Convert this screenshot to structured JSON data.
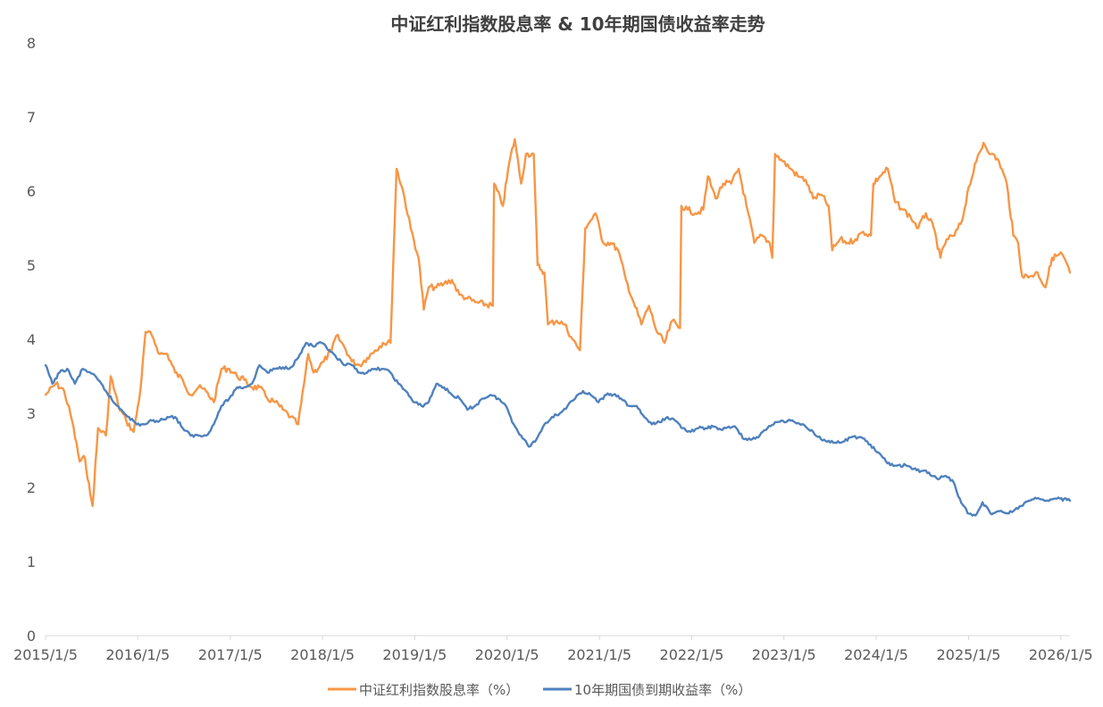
{
  "chart_data": {
    "type": "line",
    "title": "中证红利指数股息率 & 10年期国债收益率走势",
    "xlabel": "",
    "ylabel": "",
    "ylim": [
      0,
      8
    ],
    "y_ticks": [
      "0",
      "1",
      "2",
      "3",
      "4",
      "5",
      "6",
      "7",
      "8"
    ],
    "x_range": [
      "2015-01-05",
      "2026-02-10"
    ],
    "x_ticks": [
      "2015/1/5",
      "2016/1/5",
      "2017/1/5",
      "2018/1/5",
      "2019/1/5",
      "2020/1/5",
      "2021/1/5",
      "2022/1/5",
      "2023/1/5",
      "2024/1/5",
      "2025/1/5",
      "2026/1/5"
    ],
    "grid": false,
    "legend_position": "bottom",
    "series": [
      {
        "name": "中证红利指数股息率（%）",
        "color": "#F79646",
        "points": [
          [
            "2015-01-05",
            3.25
          ],
          [
            "2015-02-15",
            3.4
          ],
          [
            "2015-03-20",
            3.3
          ],
          [
            "2015-04-20",
            2.9
          ],
          [
            "2015-05-20",
            2.35
          ],
          [
            "2015-06-10",
            2.4
          ],
          [
            "2015-07-01",
            1.9
          ],
          [
            "2015-07-10",
            1.75
          ],
          [
            "2015-08-01",
            2.8
          ],
          [
            "2015-09-01",
            2.7
          ],
          [
            "2015-09-20",
            3.5
          ],
          [
            "2015-10-20",
            3.1
          ],
          [
            "2015-11-20",
            2.9
          ],
          [
            "2015-12-20",
            2.75
          ],
          [
            "2016-01-15",
            3.3
          ],
          [
            "2016-02-05",
            4.1
          ],
          [
            "2016-03-01",
            4.05
          ],
          [
            "2016-04-01",
            3.8
          ],
          [
            "2016-05-01",
            3.8
          ],
          [
            "2016-06-01",
            3.55
          ],
          [
            "2016-07-01",
            3.45
          ],
          [
            "2016-08-01",
            3.25
          ],
          [
            "2016-09-01",
            3.35
          ],
          [
            "2016-10-01",
            3.3
          ],
          [
            "2016-11-01",
            3.15
          ],
          [
            "2016-12-01",
            3.6
          ],
          [
            "2017-01-01",
            3.6
          ],
          [
            "2017-02-01",
            3.5
          ],
          [
            "2017-03-01",
            3.45
          ],
          [
            "2017-04-01",
            3.35
          ],
          [
            "2017-05-01",
            3.35
          ],
          [
            "2017-06-01",
            3.2
          ],
          [
            "2017-07-01",
            3.15
          ],
          [
            "2017-08-01",
            3.05
          ],
          [
            "2017-09-01",
            2.95
          ],
          [
            "2017-10-01",
            2.85
          ],
          [
            "2017-11-10",
            3.8
          ],
          [
            "2017-12-01",
            3.55
          ],
          [
            "2018-01-10",
            3.7
          ],
          [
            "2018-02-10",
            3.85
          ],
          [
            "2018-03-01",
            4.05
          ],
          [
            "2018-04-01",
            3.9
          ],
          [
            "2018-05-01",
            3.7
          ],
          [
            "2018-06-01",
            3.65
          ],
          [
            "2018-07-01",
            3.75
          ],
          [
            "2018-08-01",
            3.85
          ],
          [
            "2018-09-01",
            3.95
          ],
          [
            "2018-10-01",
            3.95
          ],
          [
            "2018-10-25",
            6.3
          ],
          [
            "2018-11-20",
            6.0
          ],
          [
            "2018-12-20",
            5.5
          ],
          [
            "2019-01-20",
            5.1
          ],
          [
            "2019-02-10",
            4.4
          ],
          [
            "2019-03-01",
            4.7
          ],
          [
            "2019-04-01",
            4.7
          ],
          [
            "2019-05-01",
            4.75
          ],
          [
            "2019-06-01",
            4.8
          ],
          [
            "2019-07-01",
            4.6
          ],
          [
            "2019-08-01",
            4.55
          ],
          [
            "2019-09-01",
            4.5
          ],
          [
            "2019-11-10",
            4.45
          ],
          [
            "2019-11-15",
            6.1
          ],
          [
            "2019-12-20",
            5.8
          ],
          [
            "2020-01-15",
            6.4
          ],
          [
            "2020-02-05",
            6.7
          ],
          [
            "2020-03-01",
            6.1
          ],
          [
            "2020-03-20",
            6.5
          ],
          [
            "2020-04-20",
            6.5
          ],
          [
            "2020-05-05",
            5.0
          ],
          [
            "2020-06-01",
            4.9
          ],
          [
            "2020-06-15",
            4.2
          ],
          [
            "2020-07-20",
            4.25
          ],
          [
            "2020-08-20",
            4.2
          ],
          [
            "2020-09-20",
            4.0
          ],
          [
            "2020-10-20",
            3.85
          ],
          [
            "2020-11-10",
            5.5
          ],
          [
            "2020-12-01",
            5.6
          ],
          [
            "2020-12-20",
            5.7
          ],
          [
            "2021-01-20",
            5.3
          ],
          [
            "2021-02-20",
            5.3
          ],
          [
            "2021-03-20",
            5.2
          ],
          [
            "2021-04-20",
            4.8
          ],
          [
            "2021-05-20",
            4.5
          ],
          [
            "2021-06-20",
            4.2
          ],
          [
            "2021-07-20",
            4.45
          ],
          [
            "2021-08-20",
            4.1
          ],
          [
            "2021-09-20",
            3.95
          ],
          [
            "2021-10-20",
            4.25
          ],
          [
            "2021-11-20",
            4.15
          ],
          [
            "2021-11-25",
            5.8
          ],
          [
            "2021-12-20",
            5.75
          ],
          [
            "2022-01-20",
            5.7
          ],
          [
            "2022-02-20",
            5.75
          ],
          [
            "2022-03-10",
            6.2
          ],
          [
            "2022-04-10",
            5.9
          ],
          [
            "2022-05-10",
            6.1
          ],
          [
            "2022-06-10",
            6.1
          ],
          [
            "2022-07-10",
            6.3
          ],
          [
            "2022-08-10",
            5.8
          ],
          [
            "2022-09-10",
            5.3
          ],
          [
            "2022-10-10",
            5.4
          ],
          [
            "2022-11-10",
            5.3
          ],
          [
            "2022-11-20",
            5.1
          ],
          [
            "2022-12-01",
            6.5
          ],
          [
            "2023-01-01",
            6.4
          ],
          [
            "2023-02-01",
            6.3
          ],
          [
            "2023-03-01",
            6.2
          ],
          [
            "2023-04-01",
            6.15
          ],
          [
            "2023-05-01",
            5.9
          ],
          [
            "2023-06-01",
            5.95
          ],
          [
            "2023-07-01",
            5.8
          ],
          [
            "2023-07-15",
            5.2
          ],
          [
            "2023-08-15",
            5.35
          ],
          [
            "2023-09-15",
            5.3
          ],
          [
            "2023-10-15",
            5.35
          ],
          [
            "2023-11-15",
            5.45
          ],
          [
            "2023-12-15",
            5.4
          ],
          [
            "2023-12-25",
            6.1
          ],
          [
            "2024-01-20",
            6.2
          ],
          [
            "2024-02-20",
            6.3
          ],
          [
            "2024-03-20",
            5.85
          ],
          [
            "2024-04-20",
            5.75
          ],
          [
            "2024-05-20",
            5.65
          ],
          [
            "2024-06-20",
            5.5
          ],
          [
            "2024-07-20",
            5.7
          ],
          [
            "2024-08-20",
            5.5
          ],
          [
            "2024-09-15",
            5.1
          ],
          [
            "2024-10-10",
            5.35
          ],
          [
            "2024-11-10",
            5.4
          ],
          [
            "2024-12-10",
            5.6
          ],
          [
            "2025-01-05",
            6.05
          ],
          [
            "2025-02-05",
            6.4
          ],
          [
            "2025-03-05",
            6.65
          ],
          [
            "2025-04-05",
            6.5
          ],
          [
            "2025-05-05",
            6.4
          ],
          [
            "2025-06-05",
            6.1
          ],
          [
            "2025-07-01",
            5.4
          ],
          [
            "2025-07-20",
            5.3
          ],
          [
            "2025-08-05",
            4.85
          ],
          [
            "2025-09-05",
            4.85
          ],
          [
            "2025-10-05",
            4.9
          ],
          [
            "2025-11-05",
            4.7
          ],
          [
            "2025-12-01",
            5.1
          ],
          [
            "2026-01-10",
            5.15
          ],
          [
            "2026-02-10",
            4.9
          ]
        ]
      },
      {
        "name": "10年期国债到期收益率（%）",
        "color": "#4F81BD",
        "points": [
          [
            "2015-01-05",
            3.65
          ],
          [
            "2015-02-01",
            3.4
          ],
          [
            "2015-03-01",
            3.55
          ],
          [
            "2015-04-01",
            3.6
          ],
          [
            "2015-05-01",
            3.4
          ],
          [
            "2015-06-01",
            3.6
          ],
          [
            "2015-07-01",
            3.55
          ],
          [
            "2015-08-01",
            3.45
          ],
          [
            "2015-09-01",
            3.3
          ],
          [
            "2015-10-01",
            3.15
          ],
          [
            "2015-11-01",
            3.05
          ],
          [
            "2015-12-01",
            2.95
          ],
          [
            "2016-01-01",
            2.85
          ],
          [
            "2016-02-01",
            2.85
          ],
          [
            "2016-03-01",
            2.9
          ],
          [
            "2016-04-01",
            2.9
          ],
          [
            "2016-05-01",
            2.95
          ],
          [
            "2016-06-01",
            2.95
          ],
          [
            "2016-07-01",
            2.8
          ],
          [
            "2016-08-01",
            2.7
          ],
          [
            "2016-09-01",
            2.7
          ],
          [
            "2016-10-01",
            2.7
          ],
          [
            "2016-11-01",
            2.85
          ],
          [
            "2016-12-01",
            3.1
          ],
          [
            "2017-01-01",
            3.2
          ],
          [
            "2017-02-01",
            3.35
          ],
          [
            "2017-03-01",
            3.35
          ],
          [
            "2017-04-01",
            3.4
          ],
          [
            "2017-05-01",
            3.65
          ],
          [
            "2017-06-01",
            3.55
          ],
          [
            "2017-07-01",
            3.6
          ],
          [
            "2017-08-01",
            3.62
          ],
          [
            "2017-09-01",
            3.62
          ],
          [
            "2017-10-01",
            3.75
          ],
          [
            "2017-11-01",
            3.95
          ],
          [
            "2017-12-01",
            3.9
          ],
          [
            "2018-01-01",
            3.95
          ],
          [
            "2018-02-01",
            3.85
          ],
          [
            "2018-03-01",
            3.75
          ],
          [
            "2018-04-01",
            3.65
          ],
          [
            "2018-05-01",
            3.65
          ],
          [
            "2018-06-01",
            3.55
          ],
          [
            "2018-07-01",
            3.55
          ],
          [
            "2018-08-01",
            3.6
          ],
          [
            "2018-09-01",
            3.6
          ],
          [
            "2018-10-01",
            3.55
          ],
          [
            "2018-11-01",
            3.4
          ],
          [
            "2018-12-01",
            3.3
          ],
          [
            "2019-01-01",
            3.15
          ],
          [
            "2019-02-01",
            3.1
          ],
          [
            "2019-03-01",
            3.15
          ],
          [
            "2019-04-01",
            3.4
          ],
          [
            "2019-05-01",
            3.35
          ],
          [
            "2019-06-01",
            3.25
          ],
          [
            "2019-07-01",
            3.2
          ],
          [
            "2019-08-01",
            3.05
          ],
          [
            "2019-09-01",
            3.1
          ],
          [
            "2019-10-01",
            3.2
          ],
          [
            "2019-11-01",
            3.25
          ],
          [
            "2019-12-01",
            3.2
          ],
          [
            "2020-01-01",
            3.1
          ],
          [
            "2020-02-01",
            2.85
          ],
          [
            "2020-03-01",
            2.7
          ],
          [
            "2020-04-01",
            2.55
          ],
          [
            "2020-05-01",
            2.65
          ],
          [
            "2020-06-01",
            2.85
          ],
          [
            "2020-07-01",
            2.95
          ],
          [
            "2020-08-01",
            3.0
          ],
          [
            "2020-09-01",
            3.1
          ],
          [
            "2020-10-01",
            3.2
          ],
          [
            "2020-11-01",
            3.3
          ],
          [
            "2020-12-01",
            3.25
          ],
          [
            "2021-01-01",
            3.15
          ],
          [
            "2021-02-01",
            3.25
          ],
          [
            "2021-03-01",
            3.25
          ],
          [
            "2021-04-01",
            3.2
          ],
          [
            "2021-05-01",
            3.1
          ],
          [
            "2021-06-01",
            3.1
          ],
          [
            "2021-07-01",
            2.95
          ],
          [
            "2021-08-01",
            2.85
          ],
          [
            "2021-09-01",
            2.88
          ],
          [
            "2021-10-01",
            2.95
          ],
          [
            "2021-11-01",
            2.9
          ],
          [
            "2021-12-01",
            2.8
          ],
          [
            "2022-01-01",
            2.75
          ],
          [
            "2022-02-01",
            2.8
          ],
          [
            "2022-03-01",
            2.8
          ],
          [
            "2022-04-01",
            2.82
          ],
          [
            "2022-05-01",
            2.78
          ],
          [
            "2022-06-01",
            2.82
          ],
          [
            "2022-07-01",
            2.8
          ],
          [
            "2022-08-01",
            2.65
          ],
          [
            "2022-09-01",
            2.65
          ],
          [
            "2022-10-01",
            2.7
          ],
          [
            "2022-11-01",
            2.8
          ],
          [
            "2022-12-01",
            2.88
          ],
          [
            "2023-01-01",
            2.9
          ],
          [
            "2023-02-01",
            2.9
          ],
          [
            "2023-03-01",
            2.87
          ],
          [
            "2023-04-01",
            2.82
          ],
          [
            "2023-05-01",
            2.75
          ],
          [
            "2023-06-01",
            2.65
          ],
          [
            "2023-07-01",
            2.63
          ],
          [
            "2023-08-01",
            2.6
          ],
          [
            "2023-09-01",
            2.62
          ],
          [
            "2023-10-01",
            2.68
          ],
          [
            "2023-11-01",
            2.68
          ],
          [
            "2023-12-01",
            2.62
          ],
          [
            "2024-01-01",
            2.5
          ],
          [
            "2024-02-01",
            2.4
          ],
          [
            "2024-03-01",
            2.3
          ],
          [
            "2024-04-01",
            2.3
          ],
          [
            "2024-05-01",
            2.3
          ],
          [
            "2024-06-01",
            2.25
          ],
          [
            "2024-07-01",
            2.22
          ],
          [
            "2024-08-01",
            2.2
          ],
          [
            "2024-09-01",
            2.12
          ],
          [
            "2024-10-01",
            2.15
          ],
          [
            "2024-11-01",
            2.1
          ],
          [
            "2024-12-01",
            1.85
          ],
          [
            "2025-01-01",
            1.65
          ],
          [
            "2025-02-01",
            1.62
          ],
          [
            "2025-03-01",
            1.8
          ],
          [
            "2025-04-01",
            1.65
          ],
          [
            "2025-05-01",
            1.68
          ],
          [
            "2025-06-01",
            1.65
          ],
          [
            "2025-07-01",
            1.68
          ],
          [
            "2025-08-01",
            1.75
          ],
          [
            "2025-09-01",
            1.82
          ],
          [
            "2025-10-01",
            1.85
          ],
          [
            "2025-11-01",
            1.82
          ],
          [
            "2025-12-01",
            1.84
          ],
          [
            "2026-01-01",
            1.85
          ],
          [
            "2026-02-10",
            1.82
          ]
        ]
      }
    ]
  }
}
